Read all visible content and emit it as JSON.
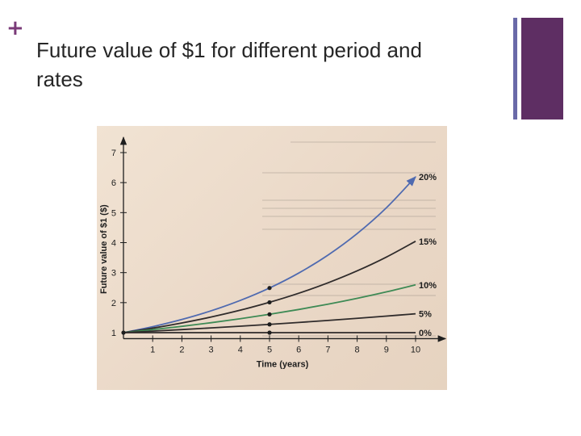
{
  "slide": {
    "title_line1": "Future value of $1 for different period and",
    "title_line2": "rates"
  },
  "decor": {
    "plus_symbol": "+",
    "plus_color": "#7a3a78",
    "accent_thin_color": "#6a6aa8",
    "accent_block_color": "#5e2e63"
  },
  "chart_data": {
    "type": "line",
    "xlabel": "Time (years)",
    "ylabel": "Future value of $1 ($)",
    "xlim": [
      0,
      10.5
    ],
    "ylim": [
      0.8,
      7.4
    ],
    "x_ticks": [
      1,
      2,
      3,
      4,
      5,
      6,
      7,
      8,
      9,
      10
    ],
    "y_ticks": [
      1,
      2,
      3,
      4,
      5,
      6,
      7
    ],
    "x": [
      0,
      1,
      2,
      3,
      4,
      5,
      6,
      7,
      8,
      9,
      10
    ],
    "grid": false,
    "legend": "labels at line ends",
    "series": [
      {
        "name": "20%",
        "color": "#4f6ab0",
        "marker_at": 5,
        "values": [
          1,
          1.2,
          1.44,
          1.728,
          2.074,
          2.488,
          2.986,
          3.583,
          4.3,
          5.16,
          6.192
        ]
      },
      {
        "name": "15%",
        "color": "#2f2b2b",
        "marker_at": 5,
        "values": [
          1,
          1.15,
          1.323,
          1.521,
          1.749,
          2.011,
          2.313,
          2.66,
          3.059,
          3.518,
          4.046
        ]
      },
      {
        "name": "10%",
        "color": "#3e8a55",
        "marker_at": 5,
        "values": [
          1,
          1.1,
          1.21,
          1.331,
          1.464,
          1.611,
          1.772,
          1.949,
          2.144,
          2.358,
          2.594
        ]
      },
      {
        "name": "5%",
        "color": "#2f2b2b",
        "marker_at": 5,
        "values": [
          1,
          1.05,
          1.103,
          1.158,
          1.216,
          1.276,
          1.34,
          1.407,
          1.477,
          1.551,
          1.629
        ]
      },
      {
        "name": "0%",
        "color": "#2f2b2b",
        "marker_at": 5,
        "values": [
          1,
          1,
          1,
          1,
          1,
          1,
          1,
          1,
          1,
          1,
          1
        ]
      }
    ]
  }
}
